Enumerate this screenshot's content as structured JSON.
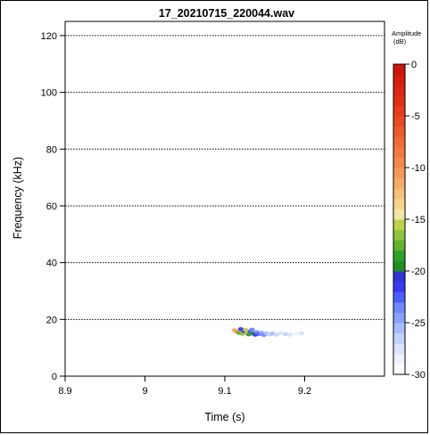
{
  "chart_data": {
    "type": "heatmap",
    "title": "17_20210715_220044.wav",
    "xlabel": "Time (s)",
    "ylabel": "Frequency (kHz)",
    "xlim": [
      8.9,
      9.3
    ],
    "ylim": [
      0,
      125
    ],
    "x_ticks": [
      "8.9",
      "9",
      "9.1",
      "9.2"
    ],
    "x_tick_values": [
      8.9,
      9.0,
      9.1,
      9.2
    ],
    "y_ticks": [
      "0",
      "20",
      "40",
      "60",
      "80",
      "100",
      "120"
    ],
    "y_tick_values": [
      0,
      20,
      40,
      60,
      80,
      100,
      120
    ],
    "grid": "horizontal dotted lines at y ticks",
    "legend": {
      "title_line1": "Amplitude",
      "title_line2": "(dB)",
      "placement": "right",
      "ticks": [
        "0",
        "-5",
        "-10",
        "-15",
        "-20",
        "-25",
        "-30"
      ],
      "tick_values": [
        0,
        -5,
        -10,
        -15,
        -20,
        -25,
        -30
      ],
      "range": [
        -30,
        0
      ],
      "colors": [
        "#ffffff",
        "#eef3ff",
        "#d9e4ff",
        "#c3d3ff",
        "#a7bcff",
        "#8ba3ff",
        "#6f88ff",
        "#4c5eff",
        "#3a3aef",
        "#3333d6",
        "#1f8f1f",
        "#2fa02a",
        "#5fb330",
        "#8fc43c",
        "#bcd24c",
        "#f2e7a2",
        "#f6d48c",
        "#f5c07a",
        "#f4ad68",
        "#f39a58",
        "#f28a4c",
        "#f17a40",
        "#ef6a36",
        "#ec5a2c",
        "#e84a24",
        "#e43c1c",
        "#df3016",
        "#da2612",
        "#d41e0e",
        "#cc160a"
      ]
    },
    "signal": {
      "time_range": [
        9.11,
        9.2
      ],
      "frequency_range": [
        13.5,
        17.5
      ],
      "points": [
        {
          "t": 9.112,
          "f": 16.2,
          "db": -12
        },
        {
          "t": 9.115,
          "f": 15.6,
          "db": -11
        },
        {
          "t": 9.118,
          "f": 15.2,
          "db": -18
        },
        {
          "t": 9.12,
          "f": 16.6,
          "db": -22
        },
        {
          "t": 9.122,
          "f": 14.9,
          "db": -17
        },
        {
          "t": 9.124,
          "f": 15.9,
          "db": -21
        },
        {
          "t": 9.126,
          "f": 16.3,
          "db": -16
        },
        {
          "t": 9.128,
          "f": 15.1,
          "db": -12
        },
        {
          "t": 9.13,
          "f": 14.7,
          "db": -19
        },
        {
          "t": 9.132,
          "f": 15.8,
          "db": -23
        },
        {
          "t": 9.134,
          "f": 16.4,
          "db": -24
        },
        {
          "t": 9.136,
          "f": 15.0,
          "db": -20
        },
        {
          "t": 9.138,
          "f": 14.6,
          "db": -22
        },
        {
          "t": 9.14,
          "f": 15.5,
          "db": -24
        },
        {
          "t": 9.143,
          "f": 14.9,
          "db": -23
        },
        {
          "t": 9.146,
          "f": 15.3,
          "db": -25
        },
        {
          "t": 9.149,
          "f": 14.5,
          "db": -24
        },
        {
          "t": 9.152,
          "f": 15.1,
          "db": -26
        },
        {
          "t": 9.156,
          "f": 14.7,
          "db": -27
        },
        {
          "t": 9.16,
          "f": 15.0,
          "db": -26
        },
        {
          "t": 9.165,
          "f": 14.6,
          "db": -27
        },
        {
          "t": 9.17,
          "f": 15.2,
          "db": -28
        },
        {
          "t": 9.176,
          "f": 14.8,
          "db": -27
        },
        {
          "t": 9.182,
          "f": 14.6,
          "db": -28
        },
        {
          "t": 9.19,
          "f": 14.9,
          "db": -29
        },
        {
          "t": 9.196,
          "f": 15.1,
          "db": -28
        }
      ]
    }
  }
}
